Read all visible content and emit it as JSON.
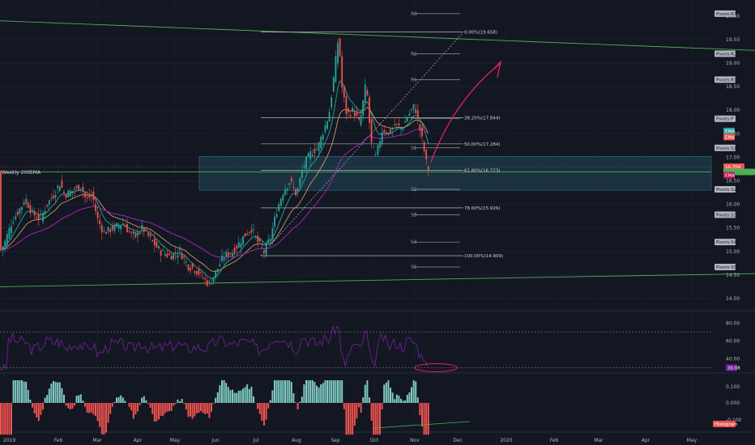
{
  "chart_data": {
    "type": "candlestick",
    "top_left_label": "Weekly 200EMA",
    "price_axis": {
      "ylim": [
        14.0,
        20.1
      ],
      "ticks": [
        "20.00",
        "19.50",
        "19.00",
        "18.50",
        "18.00",
        "17.50",
        "17.00",
        "16.50",
        "16.00",
        "15.50",
        "15.00",
        "14.50",
        "14.00"
      ]
    },
    "time_axis": {
      "ticks": [
        "2019",
        "Feb",
        "Mar",
        "Apr",
        "May",
        "Jun",
        "Jul",
        "Aug",
        "Sep",
        "Oct",
        "Nov",
        "Dec",
        "2020",
        "Feb",
        "Mar",
        "Apr",
        "May"
      ]
    },
    "current_price": "16.704",
    "ema_level": 16.69,
    "fibonacci": [
      {
        "label": "0.00%(19.658)",
        "value": 19.658
      },
      {
        "label": "38.20%(17.844)",
        "value": 17.844
      },
      {
        "label": "50.00%(17.284)",
        "value": 17.284
      },
      {
        "label": "61.80%(16.723)",
        "value": 16.723
      },
      {
        "label": "78.60%(15.926)",
        "value": 15.926
      },
      {
        "label": "100.00%(14.909)",
        "value": 14.909
      }
    ],
    "pivots": [
      {
        "label": "R3",
        "value": 20.05,
        "axis": "Pivots:R3"
      },
      {
        "label": "R2",
        "value": 19.2,
        "axis": "Pivots:R2"
      },
      {
        "label": "R1",
        "value": 18.65,
        "axis": "Pivots:R1"
      },
      {
        "label": "P",
        "value": 17.82,
        "axis": "Pivots:P"
      },
      {
        "label": "S1",
        "value": 17.2,
        "axis": "Pivots:S1"
      },
      {
        "label": "S2",
        "value": 16.32,
        "axis": "Pivots:S2"
      },
      {
        "label": "S3",
        "value": 15.78,
        "axis": "Pivots:S3"
      },
      {
        "label": "S4",
        "value": 15.2,
        "axis": "Pivots:S4"
      },
      {
        "label": "S5",
        "value": 14.67,
        "axis": "Pivots:S5"
      }
    ],
    "ema_tags": [
      "EMA",
      "EMA",
      "EMA"
    ],
    "rsi": {
      "ylim": [
        25,
        92
      ],
      "ticks": [
        "80.00",
        "60.00",
        "40.00"
      ],
      "bands": [
        70,
        30
      ],
      "value_tag": "30.08"
    },
    "histogram": {
      "ticks": [
        "0.100",
        "0.000",
        "-0.100"
      ],
      "tag": "Histogram"
    },
    "colors": {
      "up": "#26a69a",
      "down": "#ef5350",
      "ema_fast": "#26a69a",
      "ema_mid": "#e0a96d",
      "ema_slow": "#9c27b0",
      "channel": "#4caf50",
      "zone": "rgba(41,98,120,0.35)",
      "annotation": "#e91e63",
      "rsi": "#7b1fa2"
    }
  }
}
